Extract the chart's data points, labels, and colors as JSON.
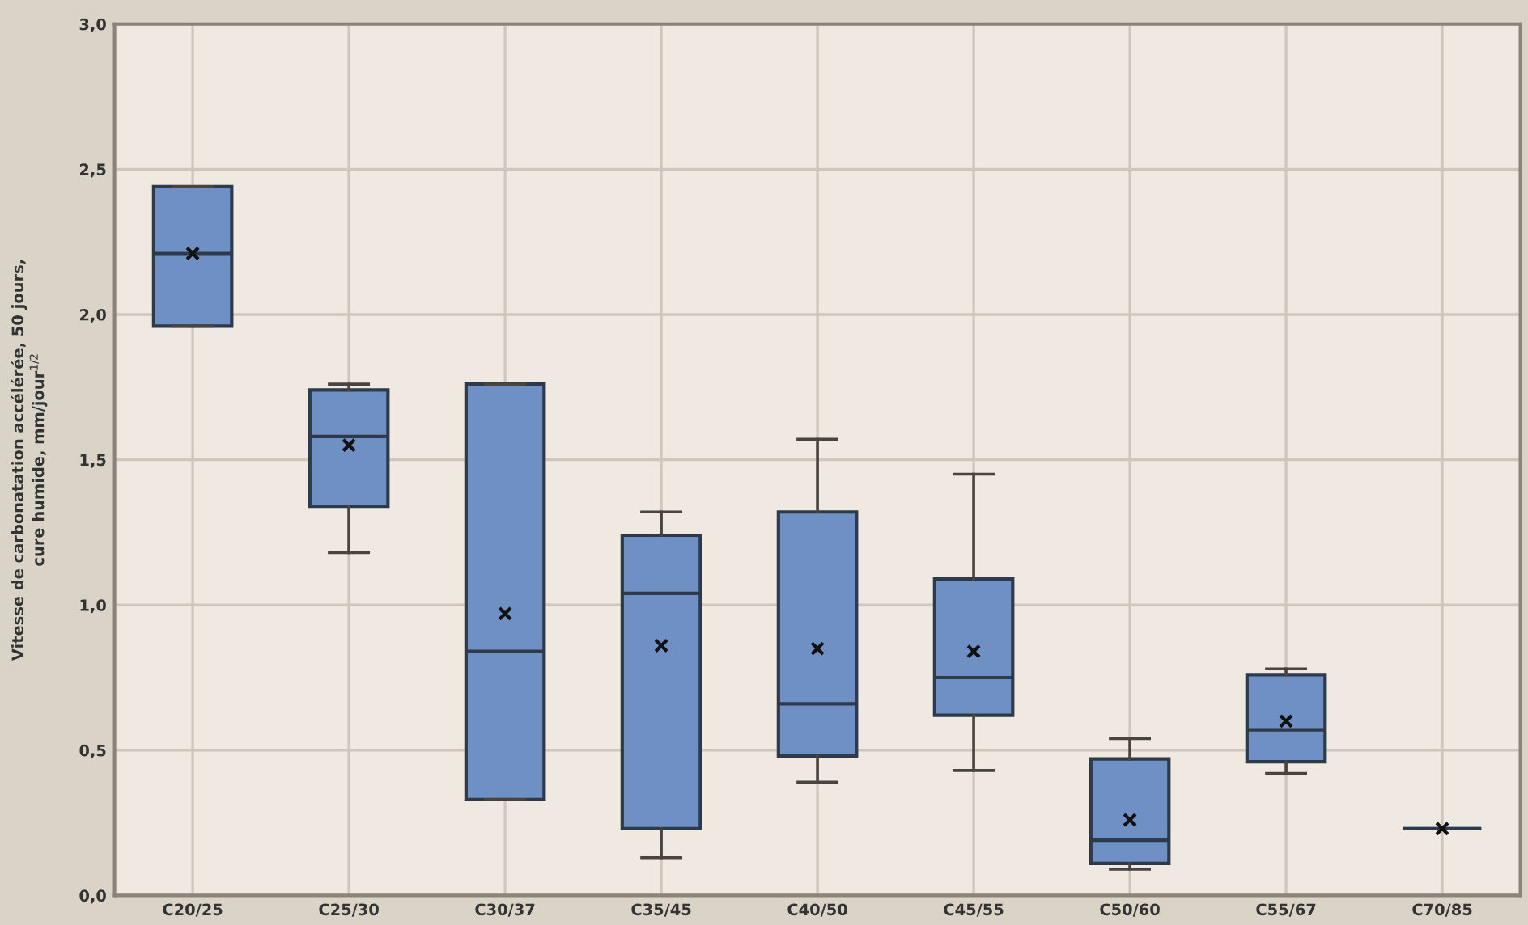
{
  "chart_data": {
    "type": "box",
    "ylabel": "Vitesse de carbonatation accélérée, 50 jours,\ncure humide, mm/jour$^{1/2}$",
    "categories": [
      "C20/25",
      "C25/30",
      "C30/37",
      "C35/45",
      "C40/50",
      "C45/55",
      "C50/60",
      "C55/67",
      "C70/85"
    ],
    "color": "#6e90c4",
    "boxes": [
      {
        "low": 1.96,
        "q1": 1.96,
        "median": 2.21,
        "q3": 2.44,
        "high": 2.44,
        "mean": 2.21
      },
      {
        "low": 1.18,
        "q1": 1.34,
        "median": 1.58,
        "q3": 1.74,
        "high": 1.76,
        "mean": 1.55
      },
      {
        "low": 0.33,
        "q1": 0.33,
        "median": 0.84,
        "q3": 1.76,
        "high": 1.76,
        "mean": 0.97
      },
      {
        "low": 0.13,
        "q1": 0.23,
        "median": 1.04,
        "q3": 1.24,
        "high": 1.32,
        "mean": 0.86
      },
      {
        "low": 0.39,
        "q1": 0.48,
        "median": 0.66,
        "q3": 1.32,
        "high": 1.57,
        "mean": 0.85
      },
      {
        "low": 0.43,
        "q1": 0.62,
        "median": 0.75,
        "q3": 1.09,
        "high": 1.45,
        "mean": 0.84
      },
      {
        "low": 0.09,
        "q1": 0.11,
        "median": 0.19,
        "q3": 0.47,
        "high": 0.54,
        "mean": 0.26
      },
      {
        "low": 0.42,
        "q1": 0.46,
        "median": 0.57,
        "q3": 0.76,
        "high": 0.78,
        "mean": 0.6
      },
      {
        "low": 0.23,
        "q1": 0.23,
        "median": 0.23,
        "q3": 0.23,
        "high": 0.23,
        "mean": 0.23
      }
    ],
    "ylim": [
      0,
      3
    ],
    "yticks": [
      {
        "value": 0,
        "label": "0,0"
      },
      {
        "value": 0.5,
        "label": "0,5"
      },
      {
        "value": 1,
        "label": "1,0"
      },
      {
        "value": 1.5,
        "label": "1,5"
      },
      {
        "value": 2,
        "label": "2,0"
      },
      {
        "value": 2.5,
        "label": "2,5"
      },
      {
        "value": 3,
        "label": "3,0"
      }
    ],
    "grid": true,
    "marker": "cross"
  }
}
